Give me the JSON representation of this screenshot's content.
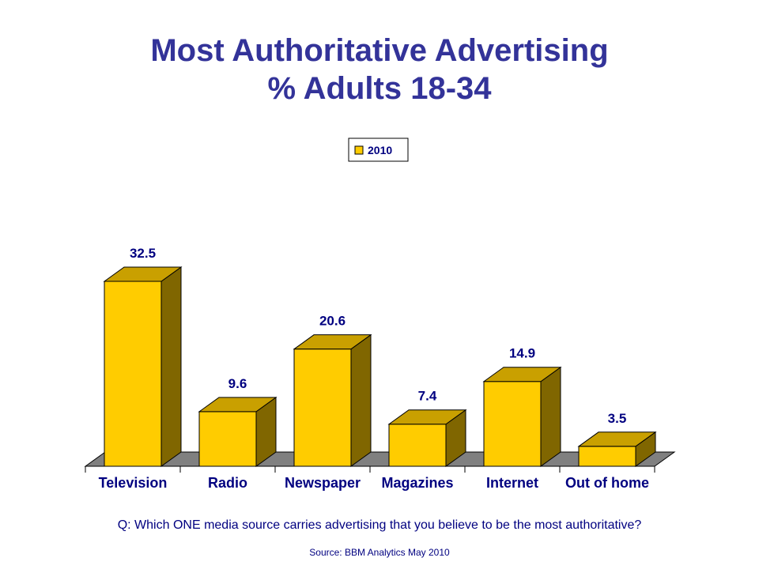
{
  "title": {
    "line1": "Most Authoritative Advertising",
    "line2": "% Adults 18-34"
  },
  "colors": {
    "title": "#333399",
    "bar_front": "#FFCC00",
    "bar_side": "#806600",
    "bar_top": "#C9A000",
    "floor": "#808080",
    "labels": "#000080"
  },
  "chart_data": {
    "type": "bar",
    "categories": [
      "Television",
      "Radio",
      "Newspaper",
      "Magazines",
      "Internet",
      "Out of home"
    ],
    "series": [
      {
        "name": "2010",
        "values": [
          32.5,
          9.6,
          20.6,
          7.4,
          14.9,
          3.5
        ]
      }
    ],
    "data_labels": [
      "32.5",
      "9.6",
      "20.6",
      "7.4",
      "14.9",
      "3.5"
    ],
    "ylim": [
      0,
      32.5
    ],
    "legend_position": "top-center",
    "style": "3d-bar",
    "grid": false
  },
  "question": "Q: Which ONE media source carries advertising that you believe to be the most authoritative?",
  "source": "Source: BBM Analytics May 2010"
}
